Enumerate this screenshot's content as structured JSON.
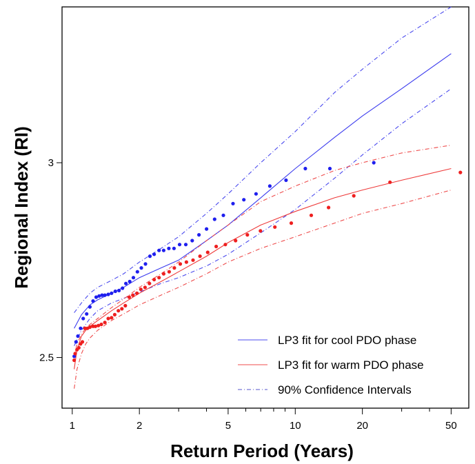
{
  "chart_data": {
    "type": "line",
    "title": "",
    "xlabel": "Return Period (Years)",
    "ylabel": "Regional Index (RI)",
    "x_scale": "log",
    "xlim": [
      0.9,
      60
    ],
    "ylim": [
      2.37,
      3.4
    ],
    "x_ticks": [
      1,
      2,
      5,
      10,
      20,
      50
    ],
    "y_ticks": [
      2.5,
      3
    ],
    "grid": false,
    "legend_position": "bottom-right",
    "colors": {
      "cool": "#2b2bef",
      "warm": "#ef2222"
    },
    "legend": [
      {
        "label": "LP3 fit for cool PDO phase",
        "style": "solid",
        "color": "#4b4bef"
      },
      {
        "label": "LP3 fit for warm PDO phase",
        "style": "solid",
        "color": "#ef4b4b"
      },
      {
        "label": "90% Confidence Intervals",
        "style": "dashdot",
        "color": "#5555cc"
      }
    ],
    "lines": [
      {
        "id": "cool-fit",
        "color": "#3a3aee",
        "dash": "none",
        "x": [
          1.02,
          1.1,
          1.2,
          1.3,
          1.5,
          1.7,
          2,
          2.5,
          3,
          4,
          5,
          7,
          10,
          15,
          20,
          30,
          50
        ],
        "y": [
          2.575,
          2.61,
          2.635,
          2.648,
          2.665,
          2.68,
          2.705,
          2.73,
          2.75,
          2.8,
          2.84,
          2.91,
          2.985,
          3.065,
          3.12,
          3.19,
          3.28
        ]
      },
      {
        "id": "cool-upper",
        "color": "#4a4aee",
        "dash": "6,3,1,3",
        "x": [
          1.02,
          1.1,
          1.2,
          1.3,
          1.5,
          1.7,
          2,
          2.5,
          3,
          4,
          5,
          7,
          10,
          15,
          20,
          30,
          50
        ],
        "y": [
          2.615,
          2.64,
          2.665,
          2.68,
          2.698,
          2.715,
          2.745,
          2.78,
          2.81,
          2.87,
          2.92,
          3.0,
          3.08,
          3.18,
          3.24,
          3.32,
          3.4
        ]
      },
      {
        "id": "cool-lower",
        "color": "#4a4aee",
        "dash": "6,3,1,3",
        "x": [
          1.02,
          1.1,
          1.2,
          1.3,
          1.5,
          1.7,
          2,
          2.5,
          3,
          4,
          5,
          7,
          10,
          15,
          20,
          30,
          50
        ],
        "y": [
          2.53,
          2.57,
          2.6,
          2.62,
          2.64,
          2.652,
          2.668,
          2.69,
          2.705,
          2.735,
          2.765,
          2.82,
          2.88,
          2.96,
          3.02,
          3.1,
          3.19
        ]
      },
      {
        "id": "warm-fit",
        "color": "#ee3a3a",
        "dash": "none",
        "x": [
          1.02,
          1.05,
          1.1,
          1.15,
          1.2,
          1.3,
          1.5,
          1.7,
          2,
          2.5,
          3,
          4,
          5,
          7,
          10,
          15,
          20,
          30,
          50
        ],
        "y": [
          2.47,
          2.52,
          2.555,
          2.57,
          2.58,
          2.595,
          2.62,
          2.64,
          2.665,
          2.695,
          2.72,
          2.76,
          2.795,
          2.84,
          2.875,
          2.91,
          2.93,
          2.955,
          2.985
        ]
      },
      {
        "id": "warm-upper",
        "color": "#ee4a4a",
        "dash": "6,3,1,3",
        "x": [
          1.02,
          1.05,
          1.1,
          1.15,
          1.2,
          1.3,
          1.5,
          1.7,
          2,
          2.5,
          3,
          4,
          5,
          7,
          10,
          15,
          20,
          30,
          50
        ],
        "y": [
          2.5,
          2.535,
          2.56,
          2.575,
          2.585,
          2.6,
          2.628,
          2.65,
          2.68,
          2.715,
          2.745,
          2.8,
          2.84,
          2.9,
          2.94,
          2.98,
          3.0,
          3.025,
          3.045
        ]
      },
      {
        "id": "warm-lower",
        "color": "#ee4a4a",
        "dash": "6,3,1,3",
        "x": [
          1.02,
          1.05,
          1.1,
          1.15,
          1.2,
          1.3,
          1.5,
          1.7,
          2,
          2.5,
          3,
          4,
          5,
          7,
          10,
          15,
          20,
          30,
          50
        ],
        "y": [
          2.42,
          2.47,
          2.51,
          2.535,
          2.55,
          2.57,
          2.595,
          2.612,
          2.635,
          2.66,
          2.68,
          2.715,
          2.745,
          2.78,
          2.81,
          2.845,
          2.87,
          2.895,
          2.93
        ]
      }
    ],
    "series": [
      {
        "id": "cool-obs",
        "color": "#1f1fee",
        "x": [
          1.02,
          1.04,
          1.06,
          1.09,
          1.12,
          1.16,
          1.2,
          1.24,
          1.28,
          1.32,
          1.36,
          1.4,
          1.45,
          1.5,
          1.56,
          1.62,
          1.68,
          1.74,
          1.81,
          1.88,
          1.96,
          2.04,
          2.13,
          2.23,
          2.33,
          2.45,
          2.57,
          2.71,
          2.86,
          3.03,
          3.23,
          3.45,
          3.7,
          4.0,
          4.35,
          4.76,
          5.26,
          5.88,
          6.67,
          7.69,
          9.09,
          11.1,
          14.3,
          22.5
        ],
        "y": [
          2.503,
          2.54,
          2.555,
          2.575,
          2.6,
          2.612,
          2.63,
          2.645,
          2.655,
          2.658,
          2.66,
          2.66,
          2.662,
          2.665,
          2.67,
          2.672,
          2.678,
          2.69,
          2.695,
          2.705,
          2.72,
          2.73,
          2.74,
          2.76,
          2.765,
          2.775,
          2.775,
          2.78,
          2.78,
          2.79,
          2.79,
          2.8,
          2.815,
          2.83,
          2.855,
          2.865,
          2.895,
          2.905,
          2.92,
          2.94,
          2.955,
          2.985,
          2.985,
          3.0
        ]
      },
      {
        "id": "warm-obs",
        "color": "#ee1f1f",
        "x": [
          1.02,
          1.03,
          1.05,
          1.07,
          1.09,
          1.11,
          1.14,
          1.17,
          1.2,
          1.24,
          1.27,
          1.31,
          1.35,
          1.4,
          1.45,
          1.5,
          1.55,
          1.61,
          1.67,
          1.73,
          1.8,
          1.87,
          1.95,
          2.03,
          2.12,
          2.22,
          2.33,
          2.45,
          2.57,
          2.72,
          2.87,
          3.05,
          3.25,
          3.48,
          3.74,
          4.05,
          4.42,
          4.86,
          5.4,
          6.1,
          6.98,
          8.1,
          9.6,
          11.8,
          14.1,
          18.3,
          26.6,
          55
        ],
        "y": [
          2.493,
          2.51,
          2.52,
          2.525,
          2.535,
          2.54,
          2.575,
          2.575,
          2.578,
          2.58,
          2.58,
          2.582,
          2.585,
          2.59,
          2.6,
          2.602,
          2.61,
          2.62,
          2.625,
          2.633,
          2.655,
          2.66,
          2.665,
          2.675,
          2.68,
          2.69,
          2.7,
          2.705,
          2.715,
          2.72,
          2.73,
          2.74,
          2.745,
          2.75,
          2.76,
          2.77,
          2.785,
          2.79,
          2.8,
          2.815,
          2.825,
          2.835,
          2.845,
          2.865,
          2.885,
          2.915,
          2.95,
          2.975
        ]
      }
    ]
  }
}
